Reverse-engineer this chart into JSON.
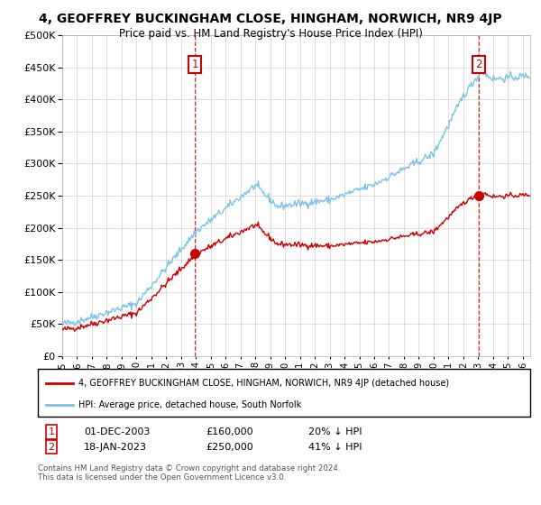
{
  "title": "4, GEOFFREY BUCKINGHAM CLOSE, HINGHAM, NORWICH, NR9 4JP",
  "subtitle": "Price paid vs. HM Land Registry's House Price Index (HPI)",
  "hpi_label": "HPI: Average price, detached house, South Norfolk",
  "property_label": "4, GEOFFREY BUCKINGHAM CLOSE, HINGHAM, NORWICH, NR9 4JP (detached house)",
  "sale1_date": "01-DEC-2003",
  "sale1_price": 160000,
  "sale1_pct": "20% ↓ HPI",
  "sale2_date": "18-JAN-2023",
  "sale2_price": 250000,
  "sale2_pct": "41% ↓ HPI",
  "footer1": "Contains HM Land Registry data © Crown copyright and database right 2024.",
  "footer2": "This data is licensed under the Open Government Licence v3.0.",
  "ylim": [
    0,
    500000
  ],
  "yticks": [
    0,
    50000,
    100000,
    150000,
    200000,
    250000,
    300000,
    350000,
    400000,
    450000,
    500000
  ],
  "hpi_color": "#7dc3e8",
  "property_color": "#cc0000",
  "background_color": "#ffffff",
  "grid_color": "#d0d0d0",
  "sale1_year": 2003.92,
  "sale2_year": 2023.04
}
